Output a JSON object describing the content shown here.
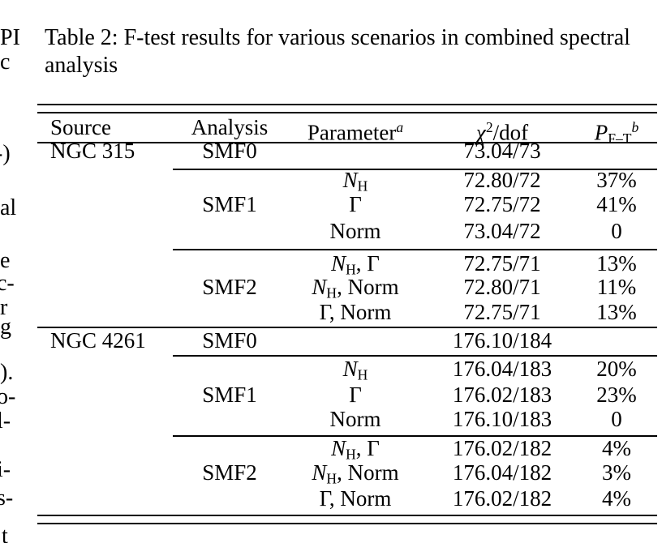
{
  "caption": {
    "line1": "Table 2: F-test results for various scenarios in combined spectral",
    "line2": "analysis"
  },
  "left_margin_fragments": [
    "PI",
    "c",
    "-)",
    "al",
    "e",
    "c-",
    "r",
    "g",
    ").",
    "o-",
    "l-",
    "i-",
    "s-",
    "t"
  ],
  "table": {
    "headers": {
      "source": [
        {
          "t": "Source"
        }
      ],
      "analysis": [
        {
          "t": "Analysis"
        }
      ],
      "parameter": [
        {
          "t": "Parameter"
        },
        {
          "t": "a",
          "sup": true,
          "i": true
        }
      ],
      "chi2": [
        {
          "t": "χ",
          "i": true
        },
        {
          "t": "2",
          "sup": true
        },
        {
          "t": "/dof"
        }
      ],
      "p": [
        {
          "t": "P",
          "i": true
        },
        {
          "t": "F–T",
          "sub": true
        },
        {
          "t": "b",
          "sup": true,
          "i": true
        }
      ]
    },
    "rows": [
      {
        "source": "NGC 315",
        "analysis": "SMF0",
        "parameter": "",
        "chi2": "73.04/73",
        "p": ""
      },
      {
        "source": "",
        "analysis": "",
        "parameter": [
          {
            "t": "N",
            "i": true
          },
          {
            "t": "H",
            "sub": true
          }
        ],
        "chi2": "72.80/72",
        "p": "37%"
      },
      {
        "source": "",
        "analysis": "SMF1",
        "parameter": [
          {
            "t": "Γ"
          }
        ],
        "chi2": "72.75/72",
        "p": "41%"
      },
      {
        "source": "",
        "analysis": "",
        "parameter": [
          {
            "t": "Norm"
          }
        ],
        "chi2": "73.04/72",
        "p": "0"
      },
      {
        "source": "",
        "analysis": "",
        "parameter": [
          {
            "t": "N",
            "i": true
          },
          {
            "t": "H",
            "sub": true
          },
          {
            "t": ", Γ"
          }
        ],
        "chi2": "72.75/71",
        "p": "13%"
      },
      {
        "source": "",
        "analysis": "SMF2",
        "parameter": [
          {
            "t": "N",
            "i": true
          },
          {
            "t": "H",
            "sub": true
          },
          {
            "t": ", Norm"
          }
        ],
        "chi2": "72.80/71",
        "p": "11%"
      },
      {
        "source": "",
        "analysis": "",
        "parameter": [
          {
            "t": "Γ, Norm"
          }
        ],
        "chi2": "72.75/71",
        "p": "13%"
      },
      {
        "source": "NGC 4261",
        "analysis": "SMF0",
        "parameter": "",
        "chi2": "176.10/184",
        "p": ""
      },
      {
        "source": "",
        "analysis": "",
        "parameter": [
          {
            "t": "N",
            "i": true
          },
          {
            "t": "H",
            "sub": true
          }
        ],
        "chi2": "176.04/183",
        "p": "20%"
      },
      {
        "source": "",
        "analysis": "SMF1",
        "parameter": [
          {
            "t": "Γ"
          }
        ],
        "chi2": "176.02/183",
        "p": "23%"
      },
      {
        "source": "",
        "analysis": "",
        "parameter": [
          {
            "t": "Norm"
          }
        ],
        "chi2": "176.10/183",
        "p": "0"
      },
      {
        "source": "",
        "analysis": "",
        "parameter": [
          {
            "t": "N",
            "i": true
          },
          {
            "t": "H",
            "sub": true
          },
          {
            "t": ", Γ"
          }
        ],
        "chi2": "176.02/182",
        "p": "4%"
      },
      {
        "source": "",
        "analysis": "SMF2",
        "parameter": [
          {
            "t": "N",
            "i": true
          },
          {
            "t": "H",
            "sub": true
          },
          {
            "t": ", Norm"
          }
        ],
        "chi2": "176.04/182",
        "p": "3%"
      },
      {
        "source": "",
        "analysis": "",
        "parameter": [
          {
            "t": "Γ, Norm"
          }
        ],
        "chi2": "176.02/182",
        "p": "4%"
      }
    ]
  },
  "colors": {
    "text": "#000000",
    "background": "#ffffff"
  }
}
